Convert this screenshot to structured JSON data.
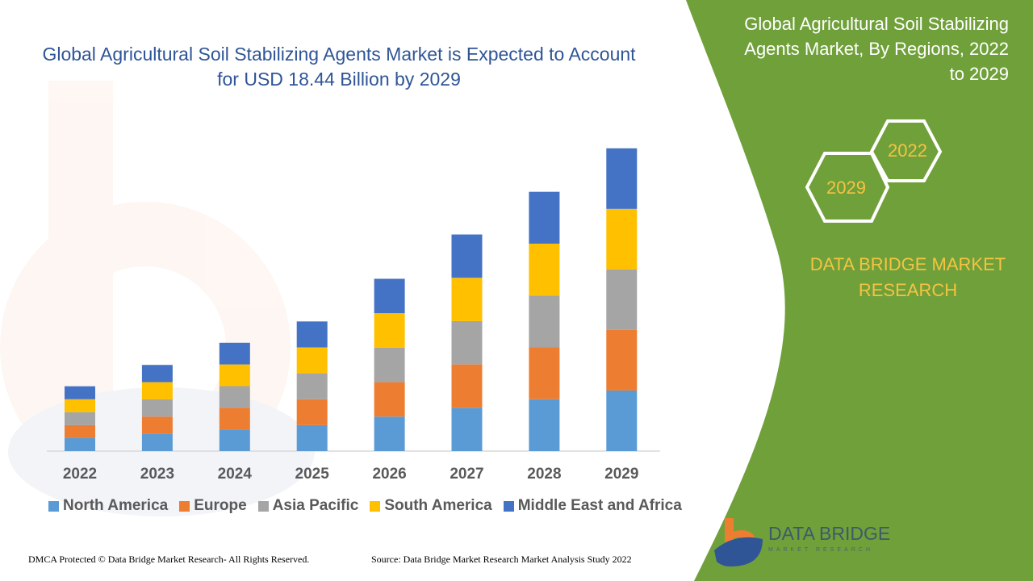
{
  "chart_data": {
    "type": "bar",
    "stacked": true,
    "title": "Global Agricultural Soil Stabilizing Agents Market is Expected to Account for USD 18.44 Billion by 2029",
    "categories": [
      "2022",
      "2023",
      "2024",
      "2025",
      "2026",
      "2027",
      "2028",
      "2029"
    ],
    "series": [
      {
        "name": "North America",
        "color": "#5b9bd5",
        "values": [
          0.79,
          1.05,
          1.32,
          1.58,
          2.1,
          2.64,
          3.16,
          3.69
        ]
      },
      {
        "name": "Europe",
        "color": "#ed7d31",
        "values": [
          0.79,
          1.05,
          1.32,
          1.58,
          2.1,
          2.64,
          3.16,
          3.69
        ]
      },
      {
        "name": "Asia Pacific",
        "color": "#a5a5a5",
        "values": [
          0.79,
          1.05,
          1.32,
          1.58,
          2.1,
          2.64,
          3.16,
          3.69
        ]
      },
      {
        "name": "South America",
        "color": "#ffc000",
        "values": [
          0.79,
          1.05,
          1.32,
          1.58,
          2.1,
          2.64,
          3.16,
          3.69
        ]
      },
      {
        "name": "Middle East and Africa",
        "color": "#4472c4",
        "values": [
          0.79,
          1.05,
          1.32,
          1.58,
          2.1,
          2.64,
          3.16,
          3.69
        ]
      }
    ],
    "ylim": [
      0,
      18.44
    ],
    "grid": false,
    "legend": "bottom"
  },
  "panel": {
    "title": "Global Agricultural Soil Stabilizing Agents Market, By Regions, 2022 to 2029",
    "hex_a": "2022",
    "hex_b": "2029",
    "brand": "DATA BRIDGE MARKET RESEARCH",
    "color": "#70a03a"
  },
  "logo": {
    "name": "DATA BRIDGE",
    "sub": "MARKET RESEARCH"
  },
  "footer": {
    "left": "DMCA Protected © Data Bridge Market Research- All Rights Reserved.",
    "right": "Source: Data Bridge Market Research Market Analysis Study 2022"
  }
}
